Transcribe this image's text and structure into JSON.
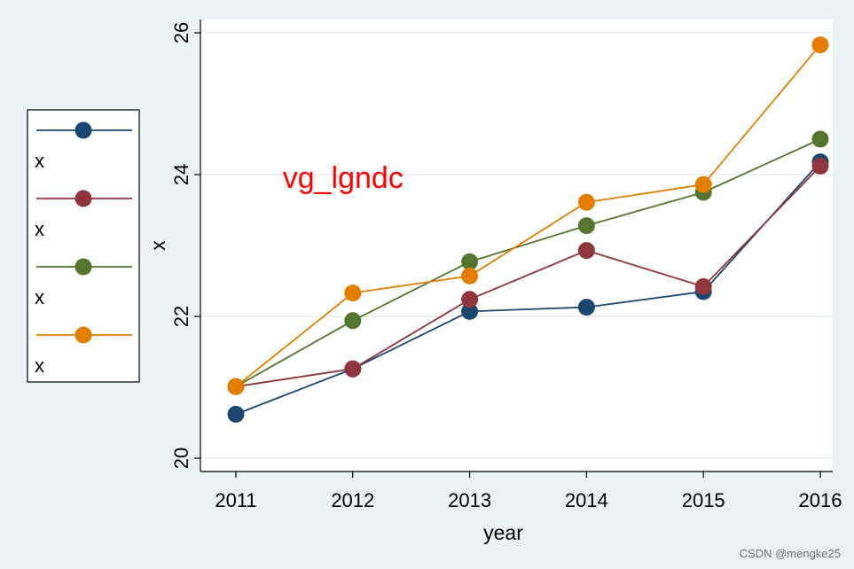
{
  "chart_data": {
    "type": "line",
    "x": [
      2011,
      2012,
      2013,
      2014,
      2015,
      2016
    ],
    "xlabel": "year",
    "ylabel": "x",
    "xlim": [
      2011,
      2016
    ],
    "ylim": [
      20,
      26
    ],
    "yticks": [
      20,
      22,
      24,
      26
    ],
    "xticks": [
      2011,
      2012,
      2013,
      2014,
      2015,
      2016
    ],
    "grid": true,
    "legend_position": "left",
    "series": [
      {
        "name": "x",
        "color": "#1a476f",
        "values": [
          20.62,
          21.26,
          22.07,
          22.13,
          22.35,
          24.18
        ]
      },
      {
        "name": "x",
        "color": "#90353b",
        "values": [
          21.01,
          21.26,
          22.24,
          22.93,
          22.42,
          24.12
        ]
      },
      {
        "name": "x",
        "color": "#55752f",
        "values": [
          21.01,
          21.94,
          22.77,
          23.28,
          23.75,
          24.5
        ]
      },
      {
        "name": "x",
        "color": "#e37e00",
        "values": [
          21.01,
          22.33,
          22.57,
          23.61,
          23.86,
          25.83
        ]
      }
    ],
    "annotation": {
      "text": "vg_lgndc",
      "color": "#ff0000",
      "x": 2011.4,
      "y": 23.96
    }
  },
  "watermark": "CSDN @mengke25"
}
